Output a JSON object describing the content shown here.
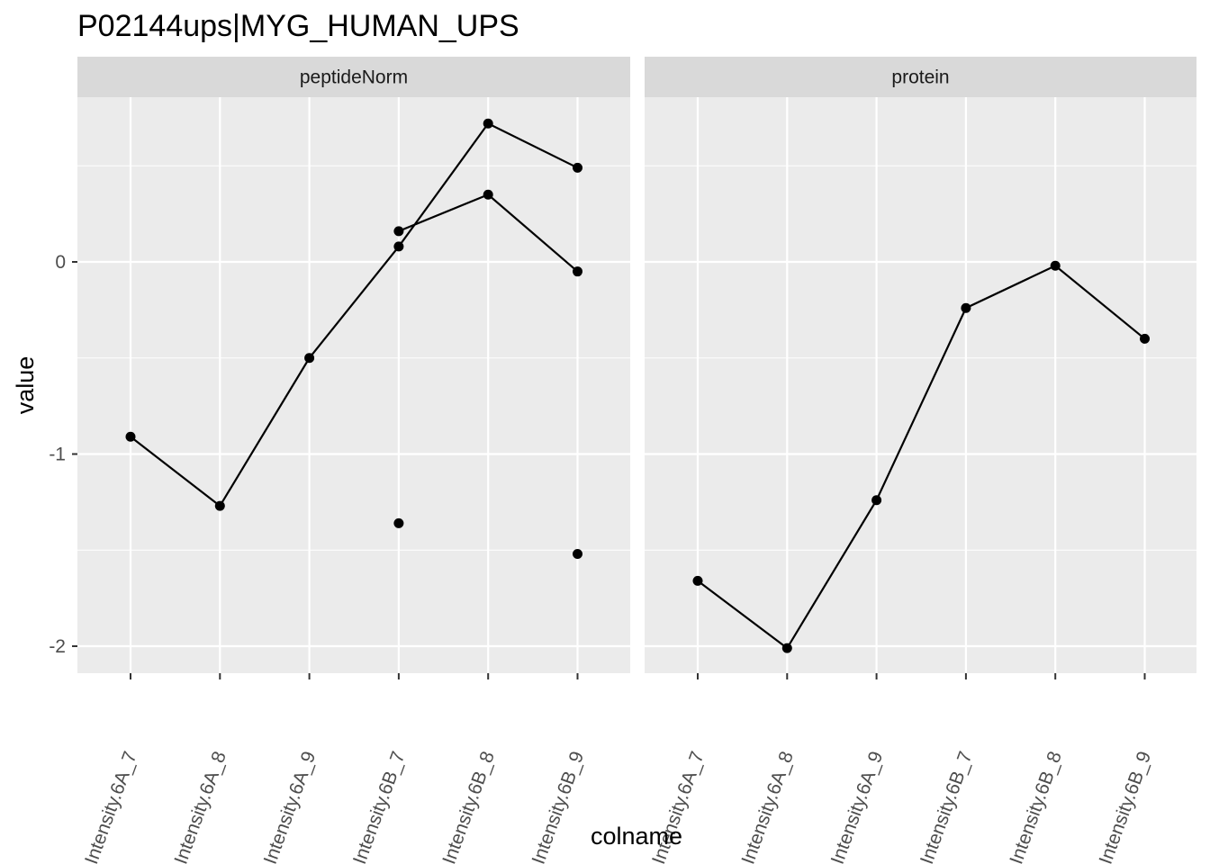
{
  "chart_data": {
    "type": "line",
    "title": "P02144ups|MYG_HUMAN_UPS",
    "xlabel": "colname",
    "ylabel": "value",
    "ylim": [
      -2.15,
      0.86
    ],
    "yticks": [
      0,
      -1,
      -2
    ],
    "grid": true,
    "categories": [
      "Intensity.6A_7",
      "Intensity.6A_8",
      "Intensity.6A_9",
      "Intensity.6B_7",
      "Intensity.6B_8",
      "Intensity.6B_9"
    ],
    "facets": [
      {
        "label": "peptideNorm",
        "series": [
          {
            "values": [
              -0.91,
              -1.27,
              -0.5,
              0.08,
              0.72,
              0.49
            ]
          },
          {
            "values": [
              null,
              null,
              null,
              0.16,
              0.35,
              -0.05
            ]
          },
          {
            "values": [
              null,
              null,
              null,
              -1.36,
              null,
              -1.52
            ],
            "lines": false
          }
        ]
      },
      {
        "label": "protein",
        "series": [
          {
            "values": [
              -1.66,
              -2.01,
              -1.24,
              -0.24,
              -0.02,
              -0.4
            ]
          }
        ]
      }
    ]
  }
}
